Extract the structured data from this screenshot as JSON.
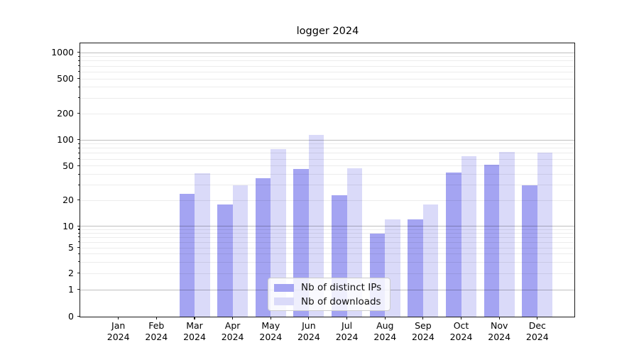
{
  "chart_data": {
    "type": "bar",
    "title": "logger 2024",
    "months": [
      "Jan",
      "Feb",
      "Mar",
      "Apr",
      "May",
      "Jun",
      "Jul",
      "Aug",
      "Sep",
      "Oct",
      "Nov",
      "Dec"
    ],
    "x_tick_year": "2024",
    "categories": [
      "Jan 2024",
      "Feb 2024",
      "Mar 2024",
      "Apr 2024",
      "May 2024",
      "Jun 2024",
      "Jul 2024",
      "Aug 2024",
      "Sep 2024",
      "Oct 2024",
      "Nov 2024",
      "Dec 2024"
    ],
    "series": [
      {
        "name": "Nb of distinct IPs",
        "color": "#a4a4f2",
        "values": [
          0,
          0,
          24,
          18,
          36,
          46,
          23,
          8,
          12,
          42,
          52,
          30
        ]
      },
      {
        "name": "Nb of downloads",
        "color": "#dadaf9",
        "values": [
          0,
          0,
          41,
          30,
          78,
          115,
          47,
          12,
          18,
          65,
          72,
          71
        ]
      }
    ],
    "y_scale": "symlog",
    "y_ticks": [
      0,
      1,
      2,
      5,
      10,
      20,
      50,
      100,
      200,
      500,
      1000
    ],
    "ylim": [
      0,
      1400
    ],
    "grid": "on",
    "legend_position": "lower-center-inside"
  }
}
